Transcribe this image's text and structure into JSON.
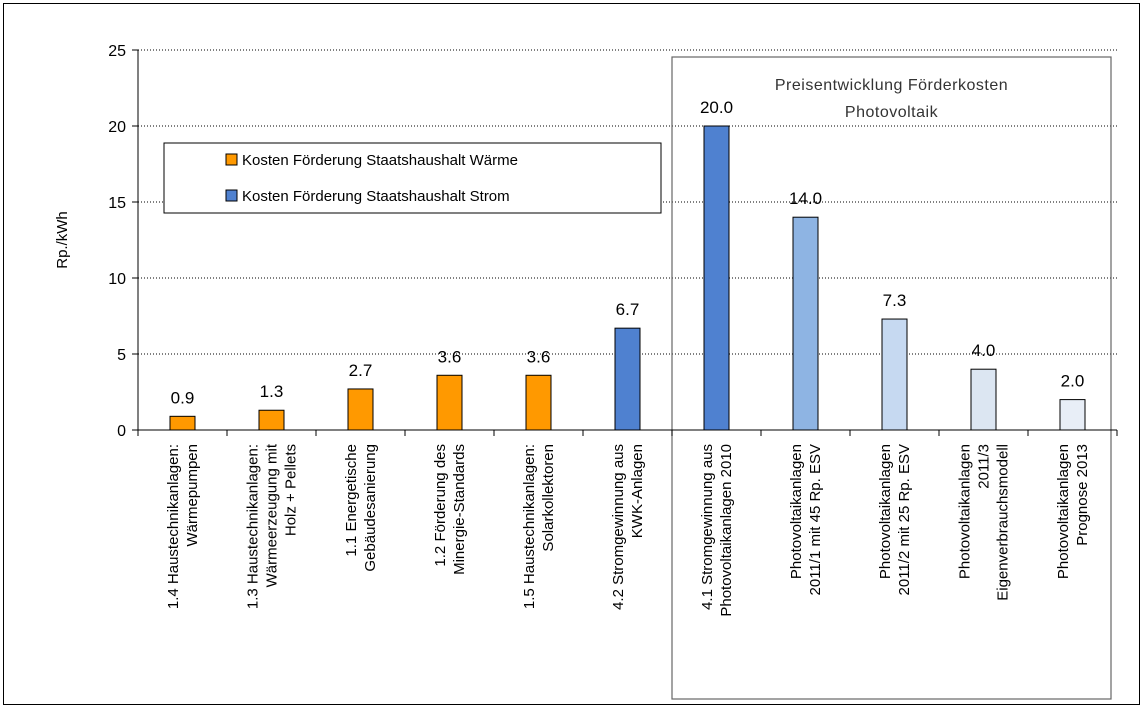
{
  "chart_data": {
    "type": "bar",
    "ylabel": "Rp./kWh",
    "ylim": [
      0,
      25
    ],
    "yticks": [
      0,
      5,
      10,
      15,
      20,
      25
    ],
    "grid": "horizontal-dotted",
    "legend_placement": "upper-left",
    "categories": [
      [
        "1.4 Haustechnikanlagen:",
        "Wärmepumpen"
      ],
      [
        "1.3 Haustechnikanlagen:",
        "Wärmeerzeugung mit",
        "Holz + Pellets"
      ],
      [
        "1.1 Energetische",
        "Gebäudesanierung"
      ],
      [
        "1.2 Förderung des",
        "Minergie-Standards"
      ],
      [
        "1.5 Haustechnikanlagen:",
        "Solarkollektoren"
      ],
      [
        "4.2 Stromgewinnung aus",
        "KWK-Anlagen"
      ],
      [
        "4.1 Stromgewinnung aus",
        "Photovoltaikanlagen 2010"
      ],
      [
        "Photovoltaikanlagen",
        "2011/1 mit 45 Rp. ESV"
      ],
      [
        "Photovoltaikanlagen",
        "2011/2 mit 25 Rp. ESV"
      ],
      [
        "Photovoltaikanlagen",
        "2011/3",
        "Eigenverbrauchsmodell"
      ],
      [
        "Photovoltaikanlagen",
        "Prognose 2013"
      ]
    ],
    "values": [
      0.9,
      1.3,
      2.7,
      3.6,
      3.6,
      6.7,
      20.0,
      14.0,
      7.3,
      4.0,
      2.0
    ],
    "value_labels": [
      "0.9",
      "1.3",
      "2.7",
      "3.6",
      "3.6",
      "6.7",
      "20.0",
      "14.0",
      "7.3",
      "4.0",
      "2.0"
    ],
    "bar_colors": [
      "#FF9900",
      "#FF9900",
      "#FF9900",
      "#FF9900",
      "#FF9900",
      "#4F81D0",
      "#4F81D0",
      "#8EB4E3",
      "#C6D9F1",
      "#DCE6F2",
      "#E8EEF7"
    ],
    "legend": [
      {
        "label": "Kosten Förderung Staatshaushalt  Wärme",
        "color": "#FF9900"
      },
      {
        "label": "Kosten Förderung Staatshaushalt  Strom",
        "color": "#4F81D0"
      }
    ],
    "annotation": {
      "lines": [
        "Preisentwicklung Förderkosten",
        "Photovoltaik"
      ],
      "box_from_category": 6,
      "box_to_category": 10
    }
  }
}
